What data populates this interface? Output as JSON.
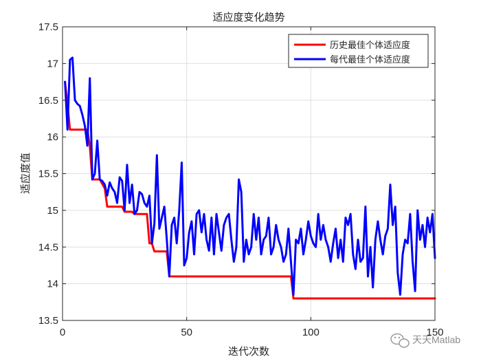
{
  "chart_data": {
    "type": "line",
    "title": "适应度变化趋势",
    "xlabel": "迭代次数",
    "ylabel": "适应度值",
    "xlim": [
      0,
      150
    ],
    "ylim": [
      13.5,
      17.5
    ],
    "xticks": [
      0,
      50,
      100,
      150
    ],
    "yticks": [
      13.5,
      14,
      14.5,
      15,
      15.5,
      16,
      16.5,
      17,
      17.5
    ],
    "grid": true,
    "legend_position": "top-right",
    "colors": {
      "best_history": "#ff0000",
      "best_per_gen": "#0000ff"
    },
    "series": [
      {
        "name": "历史最佳个体适应度",
        "color": "#ff0000",
        "x": [
          1,
          2,
          3,
          10,
          11,
          12,
          15,
          17,
          18,
          24,
          25,
          28,
          29,
          34,
          35,
          36,
          37,
          42,
          43,
          92,
          93,
          150
        ],
        "y": [
          16.75,
          16.45,
          16.1,
          16.1,
          15.87,
          15.42,
          15.42,
          15.3,
          15.05,
          15.05,
          14.98,
          14.98,
          14.95,
          14.95,
          14.55,
          14.55,
          14.44,
          14.44,
          14.1,
          14.1,
          13.8,
          13.8
        ]
      },
      {
        "name": "每代最佳个体适应度",
        "color": "#0000ff",
        "x": [
          1,
          2,
          3,
          4,
          5,
          6,
          7,
          8,
          9,
          10,
          11,
          12,
          13,
          14,
          15,
          16,
          17,
          18,
          19,
          20,
          21,
          22,
          23,
          24,
          25,
          26,
          27,
          28,
          29,
          30,
          31,
          32,
          33,
          34,
          35,
          36,
          37,
          38,
          39,
          40,
          41,
          42,
          43,
          44,
          45,
          46,
          47,
          48,
          49,
          50,
          51,
          52,
          53,
          54,
          55,
          56,
          57,
          58,
          59,
          60,
          61,
          62,
          63,
          64,
          65,
          66,
          67,
          68,
          69,
          70,
          71,
          72,
          73,
          74,
          75,
          76,
          77,
          78,
          79,
          80,
          81,
          82,
          83,
          84,
          85,
          86,
          87,
          88,
          89,
          90,
          91,
          92,
          93,
          94,
          95,
          96,
          97,
          98,
          99,
          100,
          101,
          102,
          103,
          104,
          105,
          106,
          107,
          108,
          109,
          110,
          111,
          112,
          113,
          114,
          115,
          116,
          117,
          118,
          119,
          120,
          121,
          122,
          123,
          124,
          125,
          126,
          127,
          128,
          129,
          130,
          131,
          132,
          133,
          134,
          135,
          136,
          137,
          138,
          139,
          140,
          141,
          142,
          143,
          144,
          145,
          146,
          147,
          148,
          149,
          150
        ],
        "y": [
          16.75,
          16.1,
          17.05,
          17.08,
          16.5,
          16.45,
          16.42,
          16.3,
          16.15,
          15.88,
          16.8,
          15.42,
          15.5,
          15.95,
          15.42,
          15.4,
          15.35,
          15.2,
          15.38,
          15.3,
          15.25,
          15.1,
          15.45,
          15.4,
          15.0,
          15.62,
          15.1,
          15.35,
          14.95,
          15.0,
          15.25,
          15.22,
          15.1,
          15.05,
          15.2,
          14.55,
          14.82,
          15.75,
          14.75,
          14.9,
          15.05,
          14.6,
          14.1,
          14.8,
          14.9,
          14.55,
          15.0,
          15.65,
          14.25,
          14.35,
          14.7,
          14.85,
          14.4,
          14.95,
          15.0,
          14.7,
          14.95,
          14.6,
          14.45,
          14.9,
          14.4,
          14.95,
          14.7,
          14.45,
          14.8,
          14.9,
          14.95,
          14.6,
          14.3,
          14.5,
          15.42,
          15.25,
          14.3,
          14.6,
          14.4,
          14.5,
          14.95,
          14.6,
          14.9,
          14.4,
          14.6,
          14.65,
          14.9,
          14.4,
          14.5,
          14.8,
          14.6,
          14.5,
          14.3,
          14.4,
          14.75,
          14.3,
          13.85,
          14.6,
          14.55,
          14.75,
          14.4,
          14.6,
          14.85,
          14.65,
          14.55,
          14.5,
          14.95,
          14.6,
          14.8,
          14.6,
          14.5,
          14.3,
          14.55,
          14.75,
          14.35,
          14.6,
          14.3,
          14.9,
          14.8,
          14.95,
          14.4,
          14.2,
          14.6,
          14.3,
          14.35,
          15.05,
          14.1,
          14.5,
          13.95,
          14.6,
          14.85,
          14.6,
          14.4,
          14.65,
          14.75,
          15.35,
          14.8,
          15.05,
          14.15,
          13.85,
          14.4,
          14.6,
          14.55,
          14.95,
          14.3,
          13.9,
          15.0,
          14.6,
          14.8,
          14.5,
          14.9,
          14.7,
          14.95,
          14.35
        ]
      }
    ]
  },
  "watermark": {
    "text": "天天Matlab"
  }
}
